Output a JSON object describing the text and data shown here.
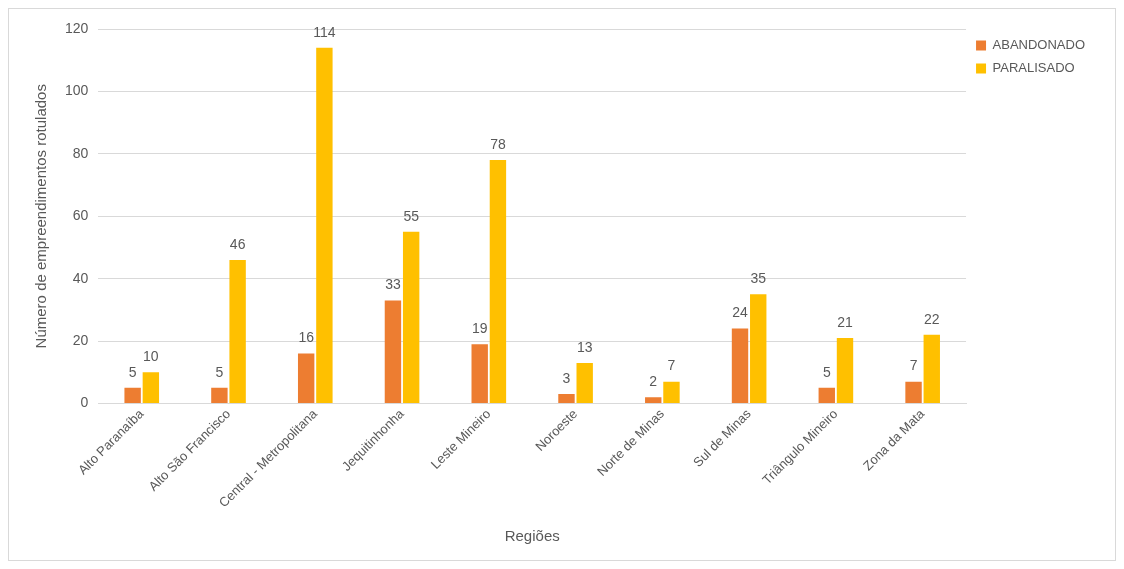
{
  "chart_data": {
    "type": "bar",
    "xlabel": "Regiões",
    "ylabel": "Número de empreendimentos rotulados",
    "categories": [
      "Alto Paranaíba",
      "Alto São Francisco",
      "Central - Metropolitana",
      "Jequitinhonha",
      "Leste Mineiro",
      "Noroeste",
      "Norte de Minas",
      "Sul de Minas",
      "Triângulo Mineiro",
      "Zona da Mata"
    ],
    "series": [
      {
        "name": "ABANDONADO",
        "color": "#ed7d31",
        "values": [
          5,
          5,
          16,
          33,
          19,
          3,
          2,
          24,
          5,
          7
        ]
      },
      {
        "name": "PARALISADO",
        "color": "#ffc000",
        "values": [
          10,
          46,
          114,
          55,
          78,
          13,
          7,
          35,
          21,
          22
        ]
      }
    ],
    "ylim": [
      0,
      120
    ],
    "yticks": [
      0,
      20,
      40,
      60,
      80,
      100,
      120
    ],
    "grid": "y",
    "legend": "top right",
    "data_labels": true
  }
}
